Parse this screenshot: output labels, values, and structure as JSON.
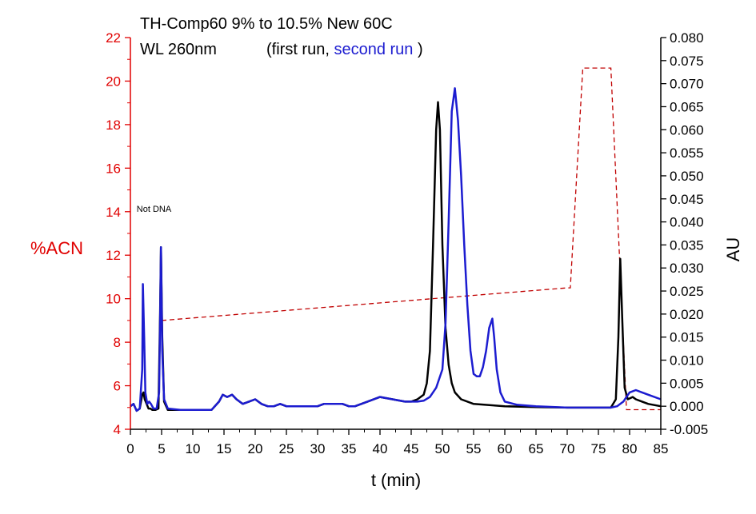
{
  "chart_data": {
    "type": "line",
    "title_line1": "TH-Comp60 9% to 10.5% New 60C",
    "title_line2_prefix": "WL 260nm",
    "title_line2_open": "(first run, ",
    "title_line2_second": "second run",
    "title_line2_close": ")",
    "xlabel": "t (min)",
    "ylabel_left": "%ACN",
    "ylabel_right": "AU",
    "annotation": "Not DNA",
    "annotation_pos": [
      1.0,
      14.0
    ],
    "xlim": [
      0,
      85
    ],
    "ylim_left": [
      4,
      22
    ],
    "ylim_right": [
      -0.005,
      0.08
    ],
    "xticks": [
      0,
      5,
      10,
      15,
      20,
      25,
      30,
      35,
      40,
      45,
      50,
      55,
      60,
      65,
      70,
      75,
      80,
      85
    ],
    "yticks_left": [
      4,
      6,
      8,
      10,
      12,
      14,
      16,
      18,
      20,
      22
    ],
    "yticks_right": [
      -0.005,
      0.0,
      0.005,
      0.01,
      0.015,
      0.02,
      0.025,
      0.03,
      0.035,
      0.04,
      0.045,
      0.05,
      0.055,
      0.06,
      0.065,
      0.07,
      0.075,
      0.08
    ],
    "yticks_right_labels": [
      "-0.005",
      "0.000",
      "0.005",
      "0.010",
      "0.015",
      "0.020",
      "0.025",
      "0.030",
      "0.035",
      "0.040",
      "0.045",
      "0.050",
      "0.055",
      "0.060",
      "0.065",
      "0.070",
      "0.075",
      "0.080"
    ],
    "colors": {
      "left_axis": "#e00000",
      "right_axis": "#000000",
      "gradient": "#c00000",
      "first_run": "#000000",
      "second_run": "#1c1cd0"
    },
    "series": [
      {
        "axis": "left",
        "style": "dashed",
        "x": [
          5,
          70,
          70.5,
          72.5,
          77,
          79.5,
          80,
          85
        ],
        "y": [
          9.0,
          10.5,
          10.5,
          20.6,
          20.6,
          4.9,
          4.9,
          4.9
        ]
      },
      {
        "axis": "right",
        "x": [
          0,
          0.5,
          1,
          1.5,
          1.9,
          2.1,
          2.3,
          2.6,
          2.9,
          3.2,
          3.5,
          4.0,
          4.5,
          4.75,
          4.9,
          5.1,
          5.4,
          6,
          8,
          13,
          14.2,
          14.8,
          15.5,
          16.3,
          17,
          18,
          19,
          20,
          21,
          22,
          23,
          24,
          25,
          26,
          27,
          28,
          29,
          30,
          31,
          32,
          33,
          34,
          35,
          36,
          37,
          38,
          40,
          42,
          44,
          45,
          46,
          47,
          47.5,
          48,
          48.5,
          49,
          49.3,
          49.6,
          50,
          50.5,
          51,
          51.5,
          52,
          53,
          55,
          60,
          65,
          70,
          75,
          77,
          77.8,
          78.2,
          78.5,
          78.8,
          79.2,
          79.7,
          80.5,
          81,
          82,
          83,
          85
        ],
        "y": [
          0.0,
          0.0005,
          -0.001,
          -0.0005,
          0.0025,
          0.003,
          0.0015,
          0.0005,
          -0.0005,
          -0.0005,
          -0.0008,
          -0.0008,
          -0.0005,
          0.02,
          0.0345,
          0.015,
          0.001,
          -0.0008,
          -0.0008,
          -0.0008,
          0.001,
          0.0025,
          0.002,
          0.0025,
          0.0015,
          0.0005,
          0.001,
          0.0015,
          0.0005,
          0.0,
          0.0,
          0.0005,
          0.0,
          0.0,
          0.0,
          0.0,
          0.0,
          0.0,
          0.0005,
          0.0005,
          0.0005,
          0.0005,
          0.0,
          0.0,
          0.0005,
          0.001,
          0.002,
          0.0015,
          0.001,
          0.001,
          0.0015,
          0.0025,
          0.005,
          0.012,
          0.035,
          0.06,
          0.066,
          0.06,
          0.035,
          0.017,
          0.009,
          0.005,
          0.003,
          0.0015,
          0.0005,
          0.0,
          -0.0002,
          -0.0003,
          -0.0003,
          -0.0003,
          0.0015,
          0.015,
          0.032,
          0.02,
          0.004,
          0.0015,
          0.002,
          0.0015,
          0.001,
          0.0005,
          0.0
        ]
      },
      {
        "axis": "right",
        "x": [
          0,
          0.5,
          1,
          1.5,
          1.9,
          2.0,
          2.2,
          2.4,
          2.7,
          3.0,
          3.3,
          3.7,
          4.2,
          4.6,
          4.75,
          4.9,
          5.1,
          5.4,
          6,
          8,
          13,
          14.2,
          14.8,
          15.5,
          16.3,
          17,
          18,
          19,
          20,
          21,
          22,
          23,
          24,
          25,
          26,
          27,
          28,
          29,
          30,
          31,
          32,
          33,
          34,
          35,
          36,
          37,
          38,
          40,
          42,
          44,
          46,
          47,
          48,
          49,
          50,
          50.5,
          51,
          51.5,
          52,
          52.5,
          53,
          53.5,
          54,
          54.5,
          55,
          55.5,
          56,
          56.5,
          57,
          57.5,
          58,
          58.3,
          58.7,
          59.3,
          60,
          62,
          65,
          70,
          75,
          77,
          78,
          78.5,
          79,
          79.5,
          80,
          81,
          82,
          83,
          85
        ],
        "y": [
          0.0,
          0.0005,
          -0.001,
          -0.0005,
          0.008,
          0.0265,
          0.015,
          0.003,
          0.0005,
          0.001,
          0.0005,
          -0.0005,
          -0.0005,
          0.003,
          0.018,
          0.0345,
          0.012,
          0.0015,
          -0.0005,
          -0.0008,
          -0.0008,
          0.001,
          0.0025,
          0.002,
          0.0025,
          0.0015,
          0.0005,
          0.001,
          0.0015,
          0.0005,
          0.0,
          0.0,
          0.0005,
          0.0,
          0.0,
          0.0,
          0.0,
          0.0,
          0.0,
          0.0005,
          0.0005,
          0.0005,
          0.0005,
          0.0,
          0.0,
          0.0005,
          0.001,
          0.002,
          0.0015,
          0.001,
          0.001,
          0.0012,
          0.002,
          0.004,
          0.008,
          0.018,
          0.04,
          0.064,
          0.069,
          0.062,
          0.05,
          0.035,
          0.022,
          0.012,
          0.007,
          0.0065,
          0.0065,
          0.0085,
          0.012,
          0.017,
          0.019,
          0.015,
          0.008,
          0.003,
          0.001,
          0.0003,
          0.0,
          -0.0003,
          -0.0003,
          -0.0003,
          0.0,
          0.0005,
          0.001,
          0.002,
          0.003,
          0.0035,
          0.003,
          0.0025,
          0.0015
        ]
      }
    ]
  }
}
